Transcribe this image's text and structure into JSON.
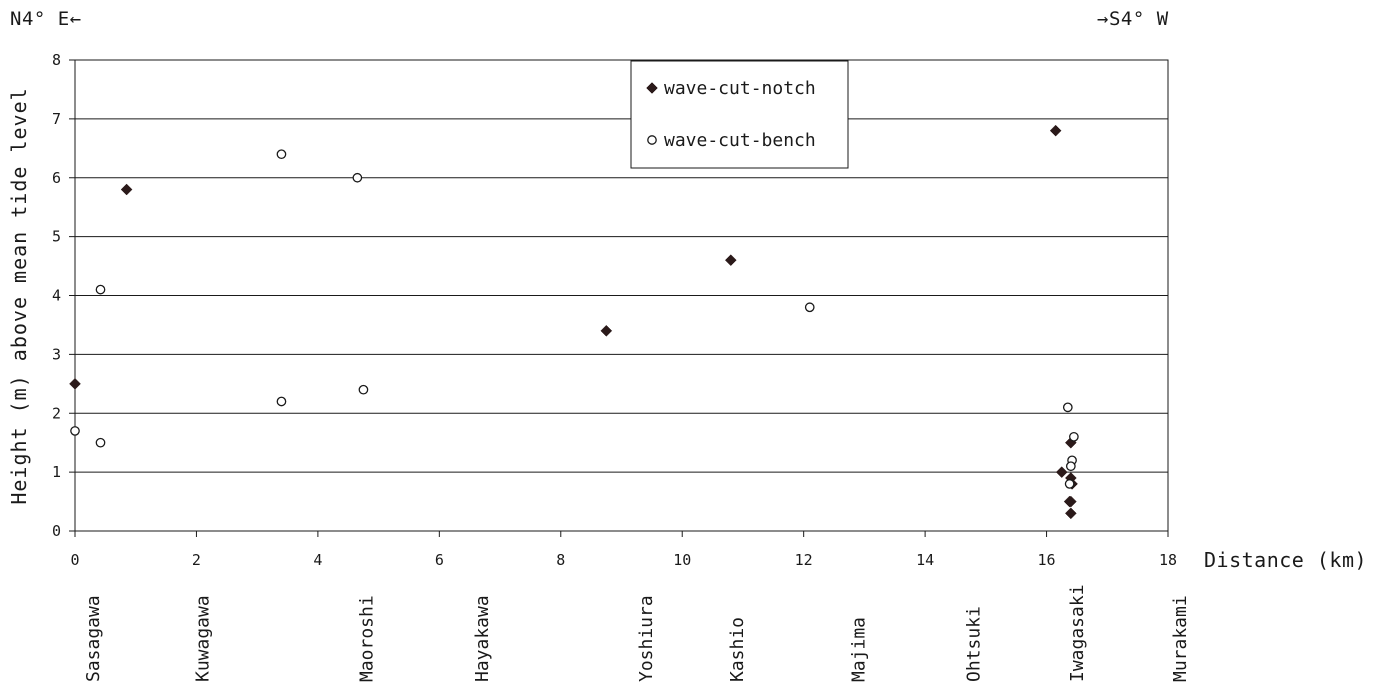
{
  "header": {
    "left_direction": "N4° E←",
    "right_direction": "→S4° W"
  },
  "chart_data": {
    "type": "scatter",
    "title": "",
    "xlabel": "Distance (km)",
    "ylabel": "Height (m)  above mean tide level",
    "xlim": [
      0,
      18
    ],
    "ylim": [
      0,
      8
    ],
    "x_ticks": [
      "0",
      "2",
      "4",
      "6",
      "8",
      "10",
      "12",
      "14",
      "16",
      "18"
    ],
    "y_ticks": [
      "0",
      "1",
      "2",
      "3",
      "4",
      "5",
      "6",
      "7",
      "8"
    ],
    "grid": "horizontal",
    "legend_position": "top-center",
    "locations": [
      {
        "name": "Sasagawa",
        "km": 0.3
      },
      {
        "name": "Kuwagawa",
        "km": 2.1
      },
      {
        "name": "Maoroshi",
        "km": 4.8
      },
      {
        "name": "Hayakawa",
        "km": 6.7
      },
      {
        "name": "Yoshiura",
        "km": 9.4
      },
      {
        "name": "Kashio",
        "km": 10.9
      },
      {
        "name": "Majima",
        "km": 12.9
      },
      {
        "name": "Ohtsuki",
        "km": 14.8
      },
      {
        "name": "Iwagasaki",
        "km": 16.5
      },
      {
        "name": "Murakami",
        "km": 18.2
      }
    ],
    "series": [
      {
        "name": "wave-cut-notch",
        "marker": "diamond",
        "color": "#2b1a1a",
        "points": [
          {
            "x": 0.0,
            "y": 2.5
          },
          {
            "x": 0.85,
            "y": 5.8
          },
          {
            "x": 8.75,
            "y": 3.4
          },
          {
            "x": 10.8,
            "y": 4.6
          },
          {
            "x": 16.15,
            "y": 6.8
          },
          {
            "x": 16.25,
            "y": 1.0
          },
          {
            "x": 16.4,
            "y": 1.5
          },
          {
            "x": 16.4,
            "y": 0.9
          },
          {
            "x": 16.42,
            "y": 0.8
          },
          {
            "x": 16.38,
            "y": 0.5
          },
          {
            "x": 16.4,
            "y": 0.5
          },
          {
            "x": 16.4,
            "y": 0.3
          }
        ]
      },
      {
        "name": "wave-cut-bench",
        "marker": "circle",
        "color": "#1a1a1a",
        "points": [
          {
            "x": 0.0,
            "y": 1.7
          },
          {
            "x": 0.42,
            "y": 4.1
          },
          {
            "x": 0.42,
            "y": 1.5
          },
          {
            "x": 3.4,
            "y": 6.4
          },
          {
            "x": 3.4,
            "y": 2.2
          },
          {
            "x": 4.65,
            "y": 6.0
          },
          {
            "x": 4.75,
            "y": 2.4
          },
          {
            "x": 12.1,
            "y": 3.8
          },
          {
            "x": 16.35,
            "y": 2.1
          },
          {
            "x": 16.45,
            "y": 1.6
          },
          {
            "x": 16.42,
            "y": 1.2
          },
          {
            "x": 16.4,
            "y": 1.1
          },
          {
            "x": 16.38,
            "y": 0.8
          }
        ]
      }
    ]
  }
}
